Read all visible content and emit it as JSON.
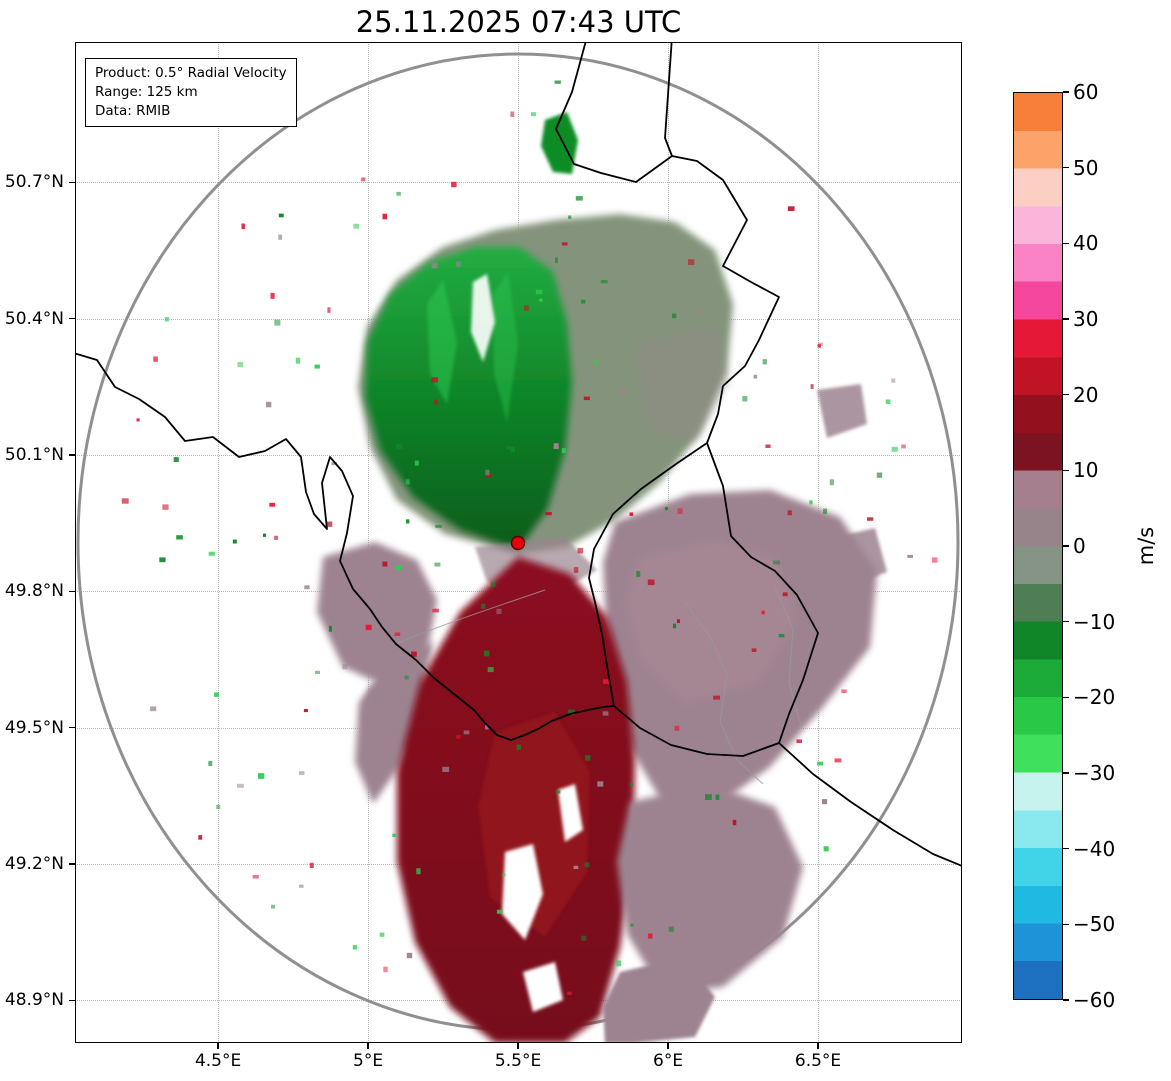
{
  "title": "25.11.2025 07:43 UTC",
  "info_box": {
    "lines": [
      "Product: 0.5° Radial Velocity",
      "Range: 125 km",
      "Data: RMIB"
    ]
  },
  "axes": {
    "x": {
      "range": [
        4.023,
        6.98
      ],
      "ticks": [
        {
          "value": 4.5,
          "label": "4.5°E"
        },
        {
          "value": 5.0,
          "label": "5°E"
        },
        {
          "value": 5.5,
          "label": "5.5°E"
        },
        {
          "value": 6.0,
          "label": "6°E"
        },
        {
          "value": 6.5,
          "label": "6.5°E"
        }
      ]
    },
    "y": {
      "range": [
        48.806,
        51.009
      ],
      "ticks": [
        {
          "value": 50.7,
          "label": "50.7°N"
        },
        {
          "value": 50.4,
          "label": "50.4°N"
        },
        {
          "value": 50.1,
          "label": "50.1°N"
        },
        {
          "value": 49.8,
          "label": "49.8°N"
        },
        {
          "value": 49.5,
          "label": "49.5°N"
        },
        {
          "value": 49.2,
          "label": "49.2°N"
        },
        {
          "value": 48.9,
          "label": "48.9°N"
        }
      ]
    }
  },
  "colorbar": {
    "unit": "m/s",
    "min": -60,
    "max": 60,
    "ticks": [
      {
        "value": 60,
        "label": "60"
      },
      {
        "value": 50,
        "label": "50"
      },
      {
        "value": 40,
        "label": "40"
      },
      {
        "value": 30,
        "label": "30"
      },
      {
        "value": 20,
        "label": "20"
      },
      {
        "value": 10,
        "label": "10"
      },
      {
        "value": 0,
        "label": "0"
      },
      {
        "value": -10,
        "label": "−10"
      },
      {
        "value": -20,
        "label": "−20"
      },
      {
        "value": -30,
        "label": "−30"
      },
      {
        "value": -40,
        "label": "−40"
      },
      {
        "value": -50,
        "label": "−50"
      },
      {
        "value": -60,
        "label": "−60"
      }
    ],
    "segments": [
      {
        "from": -60,
        "to": -55,
        "color": "#1d6fc0"
      },
      {
        "from": -55,
        "to": -50,
        "color": "#1e93d8"
      },
      {
        "from": -50,
        "to": -45,
        "color": "#1fb9e2"
      },
      {
        "from": -45,
        "to": -40,
        "color": "#41d4e8"
      },
      {
        "from": -40,
        "to": -35,
        "color": "#8ae9ef"
      },
      {
        "from": -35,
        "to": -30,
        "color": "#c6f4ec"
      },
      {
        "from": -30,
        "to": -25,
        "color": "#3fe05c"
      },
      {
        "from": -25,
        "to": -20,
        "color": "#2ac847"
      },
      {
        "from": -20,
        "to": -15,
        "color": "#1ba938"
      },
      {
        "from": -15,
        "to": -10,
        "color": "#108528"
      },
      {
        "from": -10,
        "to": -5,
        "color": "#4f7d54"
      },
      {
        "from": -5,
        "to": 0,
        "color": "#849383"
      },
      {
        "from": 0,
        "to": 5,
        "color": "#97848b"
      },
      {
        "from": 5,
        "to": 10,
        "color": "#a57f8e"
      },
      {
        "from": 10,
        "to": 15,
        "color": "#7c1322"
      },
      {
        "from": 15,
        "to": 20,
        "color": "#93111f"
      },
      {
        "from": 20,
        "to": 25,
        "color": "#c01326"
      },
      {
        "from": 25,
        "to": 30,
        "color": "#e51937"
      },
      {
        "from": 30,
        "to": 35,
        "color": "#f4469b"
      },
      {
        "from": 35,
        "to": 40,
        "color": "#f983c4"
      },
      {
        "from": 40,
        "to": 45,
        "color": "#fbb4da"
      },
      {
        "from": 45,
        "to": 50,
        "color": "#fbcfc4"
      },
      {
        "from": 50,
        "to": 55,
        "color": "#fba368"
      },
      {
        "from": 55,
        "to": 60,
        "color": "#f87f3a"
      }
    ]
  },
  "map": {
    "radar_marker_color": "#e8000b",
    "range_ring_color": "#909090",
    "border_color": "#000000",
    "grid_color": "#b8b8b8",
    "speckle_colors": [
      "#2ecc52",
      "#0e8c28",
      "#c01326",
      "#9d8390",
      "#e51937",
      "#108528"
    ]
  },
  "chart_data": {
    "type": "heatmap",
    "subtype": "doppler-radar-radial-velocity-ppi",
    "title": "25.11.2025 07:43 UTC",
    "product": "0.5° Radial Velocity",
    "range_km": 125,
    "data_source": "RMIB",
    "units": "m/s",
    "x_axis": {
      "tick_labels": [
        "4.5°E",
        "5°E",
        "5.5°E",
        "6°E",
        "6.5°E"
      ],
      "range_deg_e": [
        4.02,
        6.98
      ]
    },
    "y_axis": {
      "tick_labels": [
        "50.7°N",
        "50.4°N",
        "50.1°N",
        "49.8°N",
        "49.5°N",
        "49.2°N",
        "48.9°N"
      ],
      "range_deg_n": [
        48.81,
        51.01
      ]
    },
    "colorbar": {
      "unit": "m/s",
      "range": [
        -60,
        60
      ],
      "tick_values": [
        60,
        50,
        40,
        30,
        20,
        10,
        0,
        -10,
        -20,
        -30,
        -40,
        -50,
        -60
      ]
    },
    "radar_site": {
      "lon_e": 5.5,
      "lat_n": 49.9,
      "marker": "red dot"
    },
    "range_ring_km": 125,
    "grid": "dotted",
    "field_summary": [
      {
        "sector": "north-northwest of radar",
        "approx_radial_velocity_ms": [
          -25,
          -10
        ],
        "appearance": "saturated green fan (inbound flow)"
      },
      {
        "sector": "north-northeast of radar",
        "approx_radial_velocity_ms": [
          -10,
          0
        ],
        "appearance": "gray-green area with mauve speckles"
      },
      {
        "sector": "south of radar",
        "approx_radial_velocity_ms": [
          10,
          20
        ],
        "appearance": "dark red core (outbound flow)"
      },
      {
        "sector": "east and southeast of radar",
        "approx_radial_velocity_ms": [
          0,
          10
        ],
        "appearance": "broad mauve region"
      },
      {
        "sector": "west of red core",
        "approx_radial_velocity_ms": [
          0,
          10
        ],
        "appearance": "mauve patches"
      },
      {
        "sector": "northern edge near 5.6°E 50.75°N",
        "approx_radial_velocity_ms": [
          -20,
          -10
        ],
        "appearance": "small isolated green cell"
      }
    ]
  }
}
